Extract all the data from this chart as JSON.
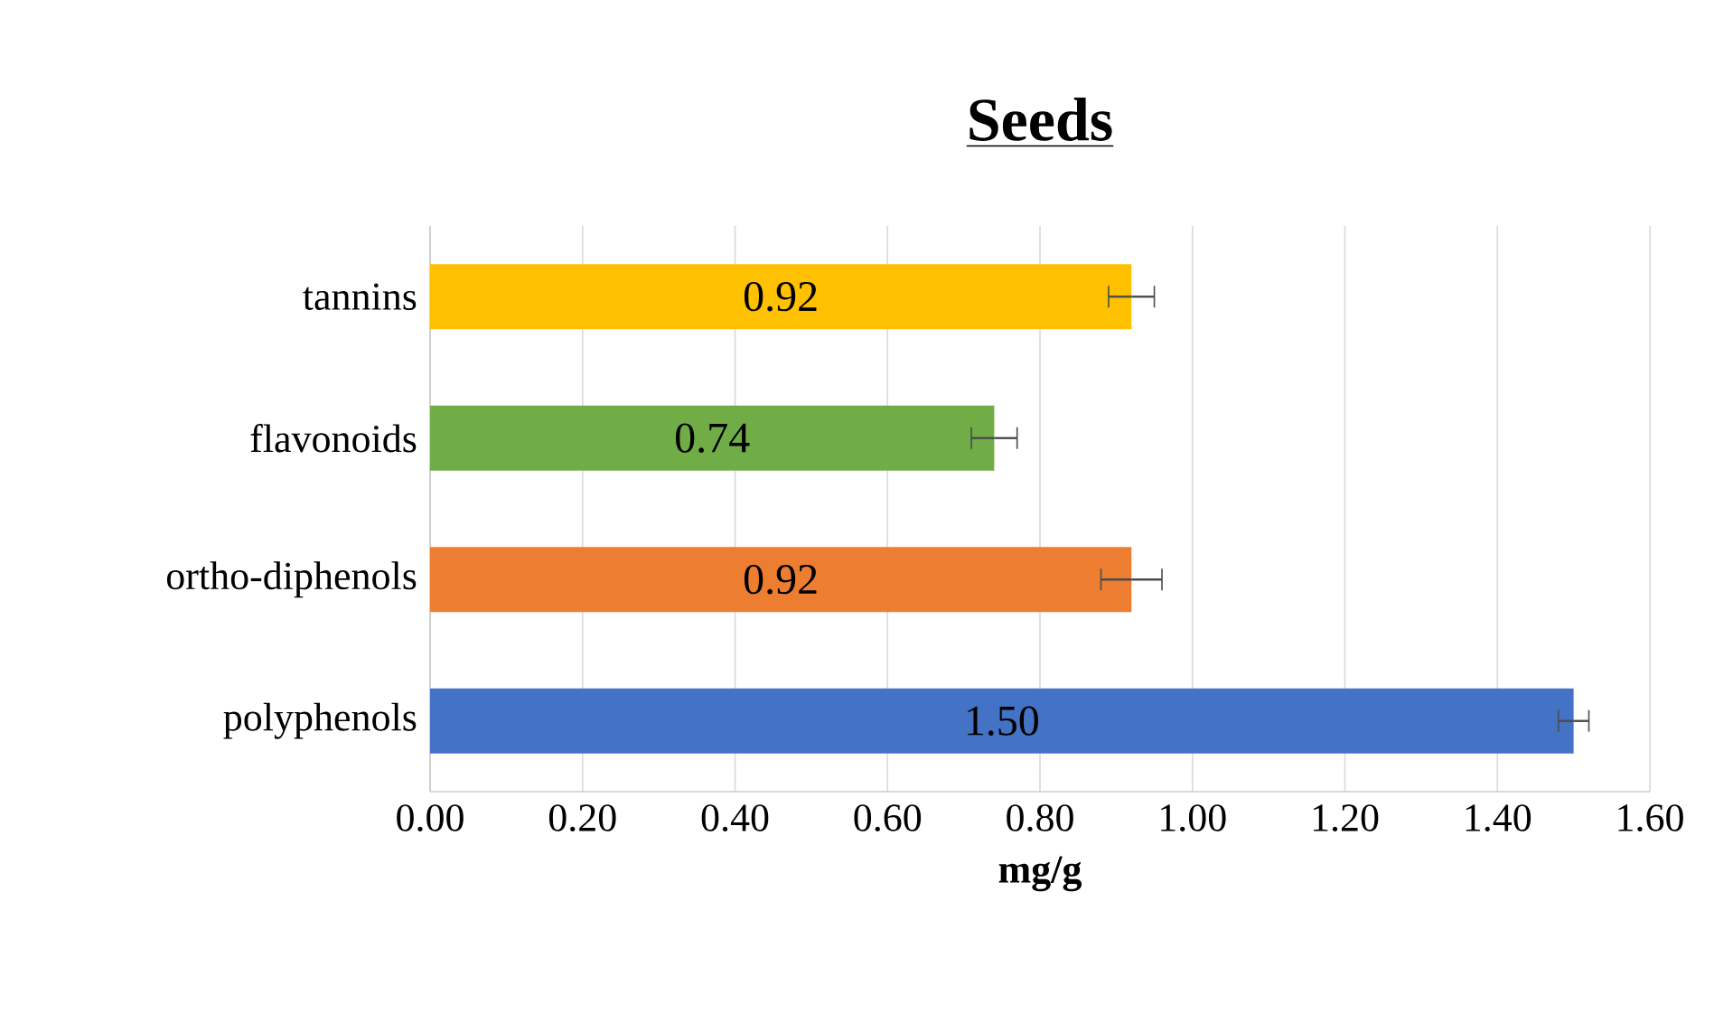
{
  "chart_data": {
    "type": "bar",
    "orientation": "horizontal",
    "title": "Seeds",
    "xlabel": "mg/g",
    "categories": [
      "tannins",
      "flavonoids",
      "ortho-diphenols",
      "polyphenols"
    ],
    "values": [
      0.92,
      0.74,
      0.92,
      1.5
    ],
    "value_labels": [
      "0.92",
      "0.74",
      "0.92",
      "1.50"
    ],
    "errors": [
      0.03,
      0.03,
      0.04,
      0.02
    ],
    "colors": [
      "#ffc000",
      "#70ad47",
      "#ed7d31",
      "#4472c4"
    ],
    "xlim": [
      0,
      1.6
    ],
    "xticks": [
      {
        "value": 0,
        "label": "0.00"
      },
      {
        "value": 0.2,
        "label": "0.20"
      },
      {
        "value": 0.4,
        "label": "0.40"
      },
      {
        "value": 0.6,
        "label": "0.60"
      },
      {
        "value": 0.8,
        "label": "0.80"
      },
      {
        "value": 1.0,
        "label": "1.00"
      },
      {
        "value": 1.2,
        "label": "1.20"
      },
      {
        "value": 1.4,
        "label": "1.40"
      },
      {
        "value": 1.6,
        "label": "1.60"
      }
    ],
    "grid": "x"
  }
}
